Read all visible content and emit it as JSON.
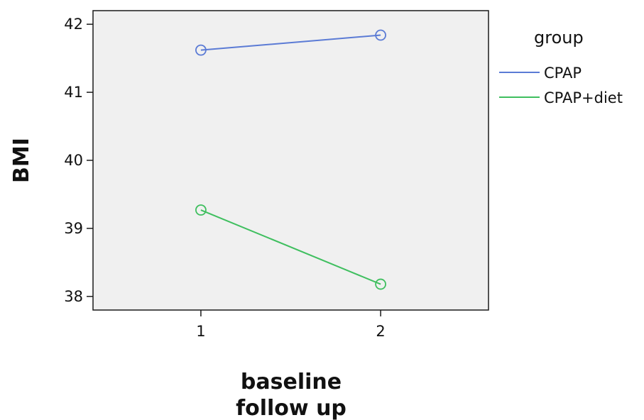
{
  "chart_data": {
    "type": "line",
    "x": [
      1,
      2
    ],
    "xlabel": [
      "baseline",
      "follow up"
    ],
    "ylabel": "BMI",
    "xlim": [
      0.4,
      2.6
    ],
    "ylim": [
      37.8,
      42.2
    ],
    "xticks": [
      "1",
      "2"
    ],
    "yticks": [
      "38",
      "39",
      "40",
      "41",
      "42"
    ],
    "grid": false,
    "legend": {
      "title": "group",
      "position": "right"
    },
    "series": [
      {
        "name": "CPAP",
        "color": "#5b7bd5",
        "values": [
          41.62,
          41.84
        ],
        "marker": "circle-open"
      },
      {
        "name": "CPAP+diet",
        "color": "#3fbf5f",
        "values": [
          39.27,
          38.18
        ],
        "marker": "circle-open"
      }
    ]
  }
}
